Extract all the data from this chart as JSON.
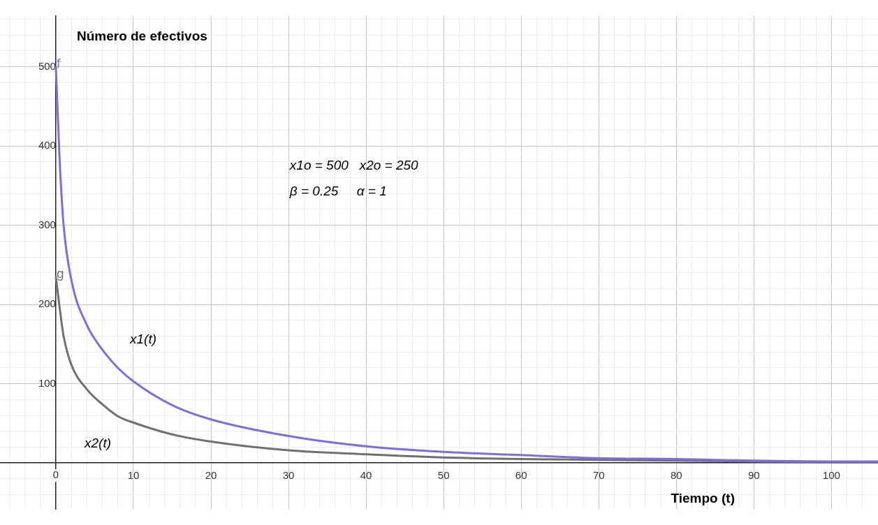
{
  "chart_data": {
    "type": "line",
    "ylabel": "Número de efectivos",
    "xlabel": "Tiempo (t)",
    "x": [
      0,
      0.5,
      1,
      2,
      4,
      6,
      8,
      10,
      15,
      20,
      30,
      40,
      50,
      60,
      70,
      80,
      90,
      100,
      106
    ],
    "series": [
      {
        "name": "x1(t)",
        "color": "#7b6fe0",
        "values": [
          500,
          380,
          300,
          231,
          174,
          143,
          120,
          103,
          73,
          55,
          34,
          21,
          14,
          10,
          6,
          5,
          3,
          2,
          2
        ]
      },
      {
        "name": "x2(t)",
        "color": "#707070",
        "values": [
          235,
          195,
          160,
          124,
          93,
          74,
          59,
          51,
          36,
          27,
          16,
          11,
          7,
          5,
          4,
          3,
          2,
          1,
          1
        ]
      }
    ],
    "annotations": [
      "x1o = 500   x2o = 250",
      "β = 0.25     α = 1",
      {
        "text": "f",
        "x": 0,
        "y": 500
      },
      {
        "text": "g",
        "x": 0,
        "y": 235
      }
    ],
    "xlim": [
      -7.2,
      106
    ],
    "ylim": [
      -58,
      564
    ],
    "xticks": [
      {
        "value": -6,
        "label": null
      },
      {
        "value": -4,
        "label": null
      },
      {
        "value": -2,
        "label": null
      },
      0,
      {
        "value": 2,
        "label": null
      },
      {
        "value": 4,
        "label": null
      },
      {
        "value": 6,
        "label": null
      },
      {
        "value": 8,
        "label": null
      },
      10,
      {
        "value": 12,
        "label": null
      },
      {
        "value": 14,
        "label": null
      },
      {
        "value": 16,
        "label": null
      },
      {
        "value": 18,
        "label": null
      },
      20,
      {
        "value": 22,
        "label": null
      },
      {
        "value": 24,
        "label": null
      },
      {
        "value": 26,
        "label": null
      },
      {
        "value": 28,
        "label": null
      },
      30,
      {
        "value": 32,
        "label": null
      },
      {
        "value": 34,
        "label": null
      },
      {
        "value": 36,
        "label": null
      },
      {
        "value": 38,
        "label": null
      },
      40,
      {
        "value": 42,
        "label": null
      },
      {
        "value": 44,
        "label": null
      },
      {
        "value": 46,
        "label": null
      },
      {
        "value": 48,
        "label": null
      },
      50,
      {
        "value": 52,
        "label": null
      },
      {
        "value": 54,
        "label": null
      },
      {
        "value": 56,
        "label": null
      },
      {
        "value": 58,
        "label": null
      },
      60,
      {
        "value": 62,
        "label": null
      },
      {
        "value": 64,
        "label": null
      },
      {
        "value": 66,
        "label": null
      },
      {
        "value": 68,
        "label": null
      },
      70,
      {
        "value": 72,
        "label": null
      },
      {
        "value": 74,
        "label": null
      },
      {
        "value": 76,
        "label": null
      },
      {
        "value": 78,
        "label": null
      },
      80,
      {
        "value": 82,
        "label": null
      },
      {
        "value": 84,
        "label": null
      },
      {
        "value": 86,
        "label": null
      },
      {
        "value": 88,
        "label": null
      },
      90,
      {
        "value": 92,
        "label": null
      },
      {
        "value": 94,
        "label": null
      },
      {
        "value": 96,
        "label": null
      },
      {
        "value": 98,
        "label": null
      },
      100,
      {
        "value": 102,
        "label": null
      },
      {
        "value": 104,
        "label": null
      }
    ],
    "yticks": [
      {
        "value": -40,
        "label": null
      },
      {
        "value": -20,
        "label": null
      },
      {
        "value": 0,
        "label": null
      },
      {
        "value": 20,
        "label": null
      },
      {
        "value": 40,
        "label": null
      },
      {
        "value": 60,
        "label": null
      },
      {
        "value": 80,
        "label": null
      },
      100,
      {
        "value": 120,
        "label": null
      },
      {
        "value": 140,
        "label": null
      },
      {
        "value": 160,
        "label": null
      },
      {
        "value": 180,
        "label": null
      },
      200,
      {
        "value": 220,
        "label": null
      },
      {
        "value": 240,
        "label": null
      },
      {
        "value": 260,
        "label": null
      },
      {
        "value": 280,
        "label": null
      },
      300,
      {
        "value": 320,
        "label": null
      },
      {
        "value": 340,
        "label": null
      },
      {
        "value": 360,
        "label": null
      },
      {
        "value": 380,
        "label": null
      },
      400,
      {
        "value": 420,
        "label": null
      },
      {
        "value": 440,
        "label": null
      },
      {
        "value": 460,
        "label": null
      },
      {
        "value": 480,
        "label": null
      },
      500,
      {
        "value": 520,
        "label": null
      },
      {
        "value": 540,
        "label": null
      },
      {
        "value": 560,
        "label": null
      }
    ],
    "grid": true,
    "legend": false,
    "marker": "none",
    "line_style": "solid"
  }
}
